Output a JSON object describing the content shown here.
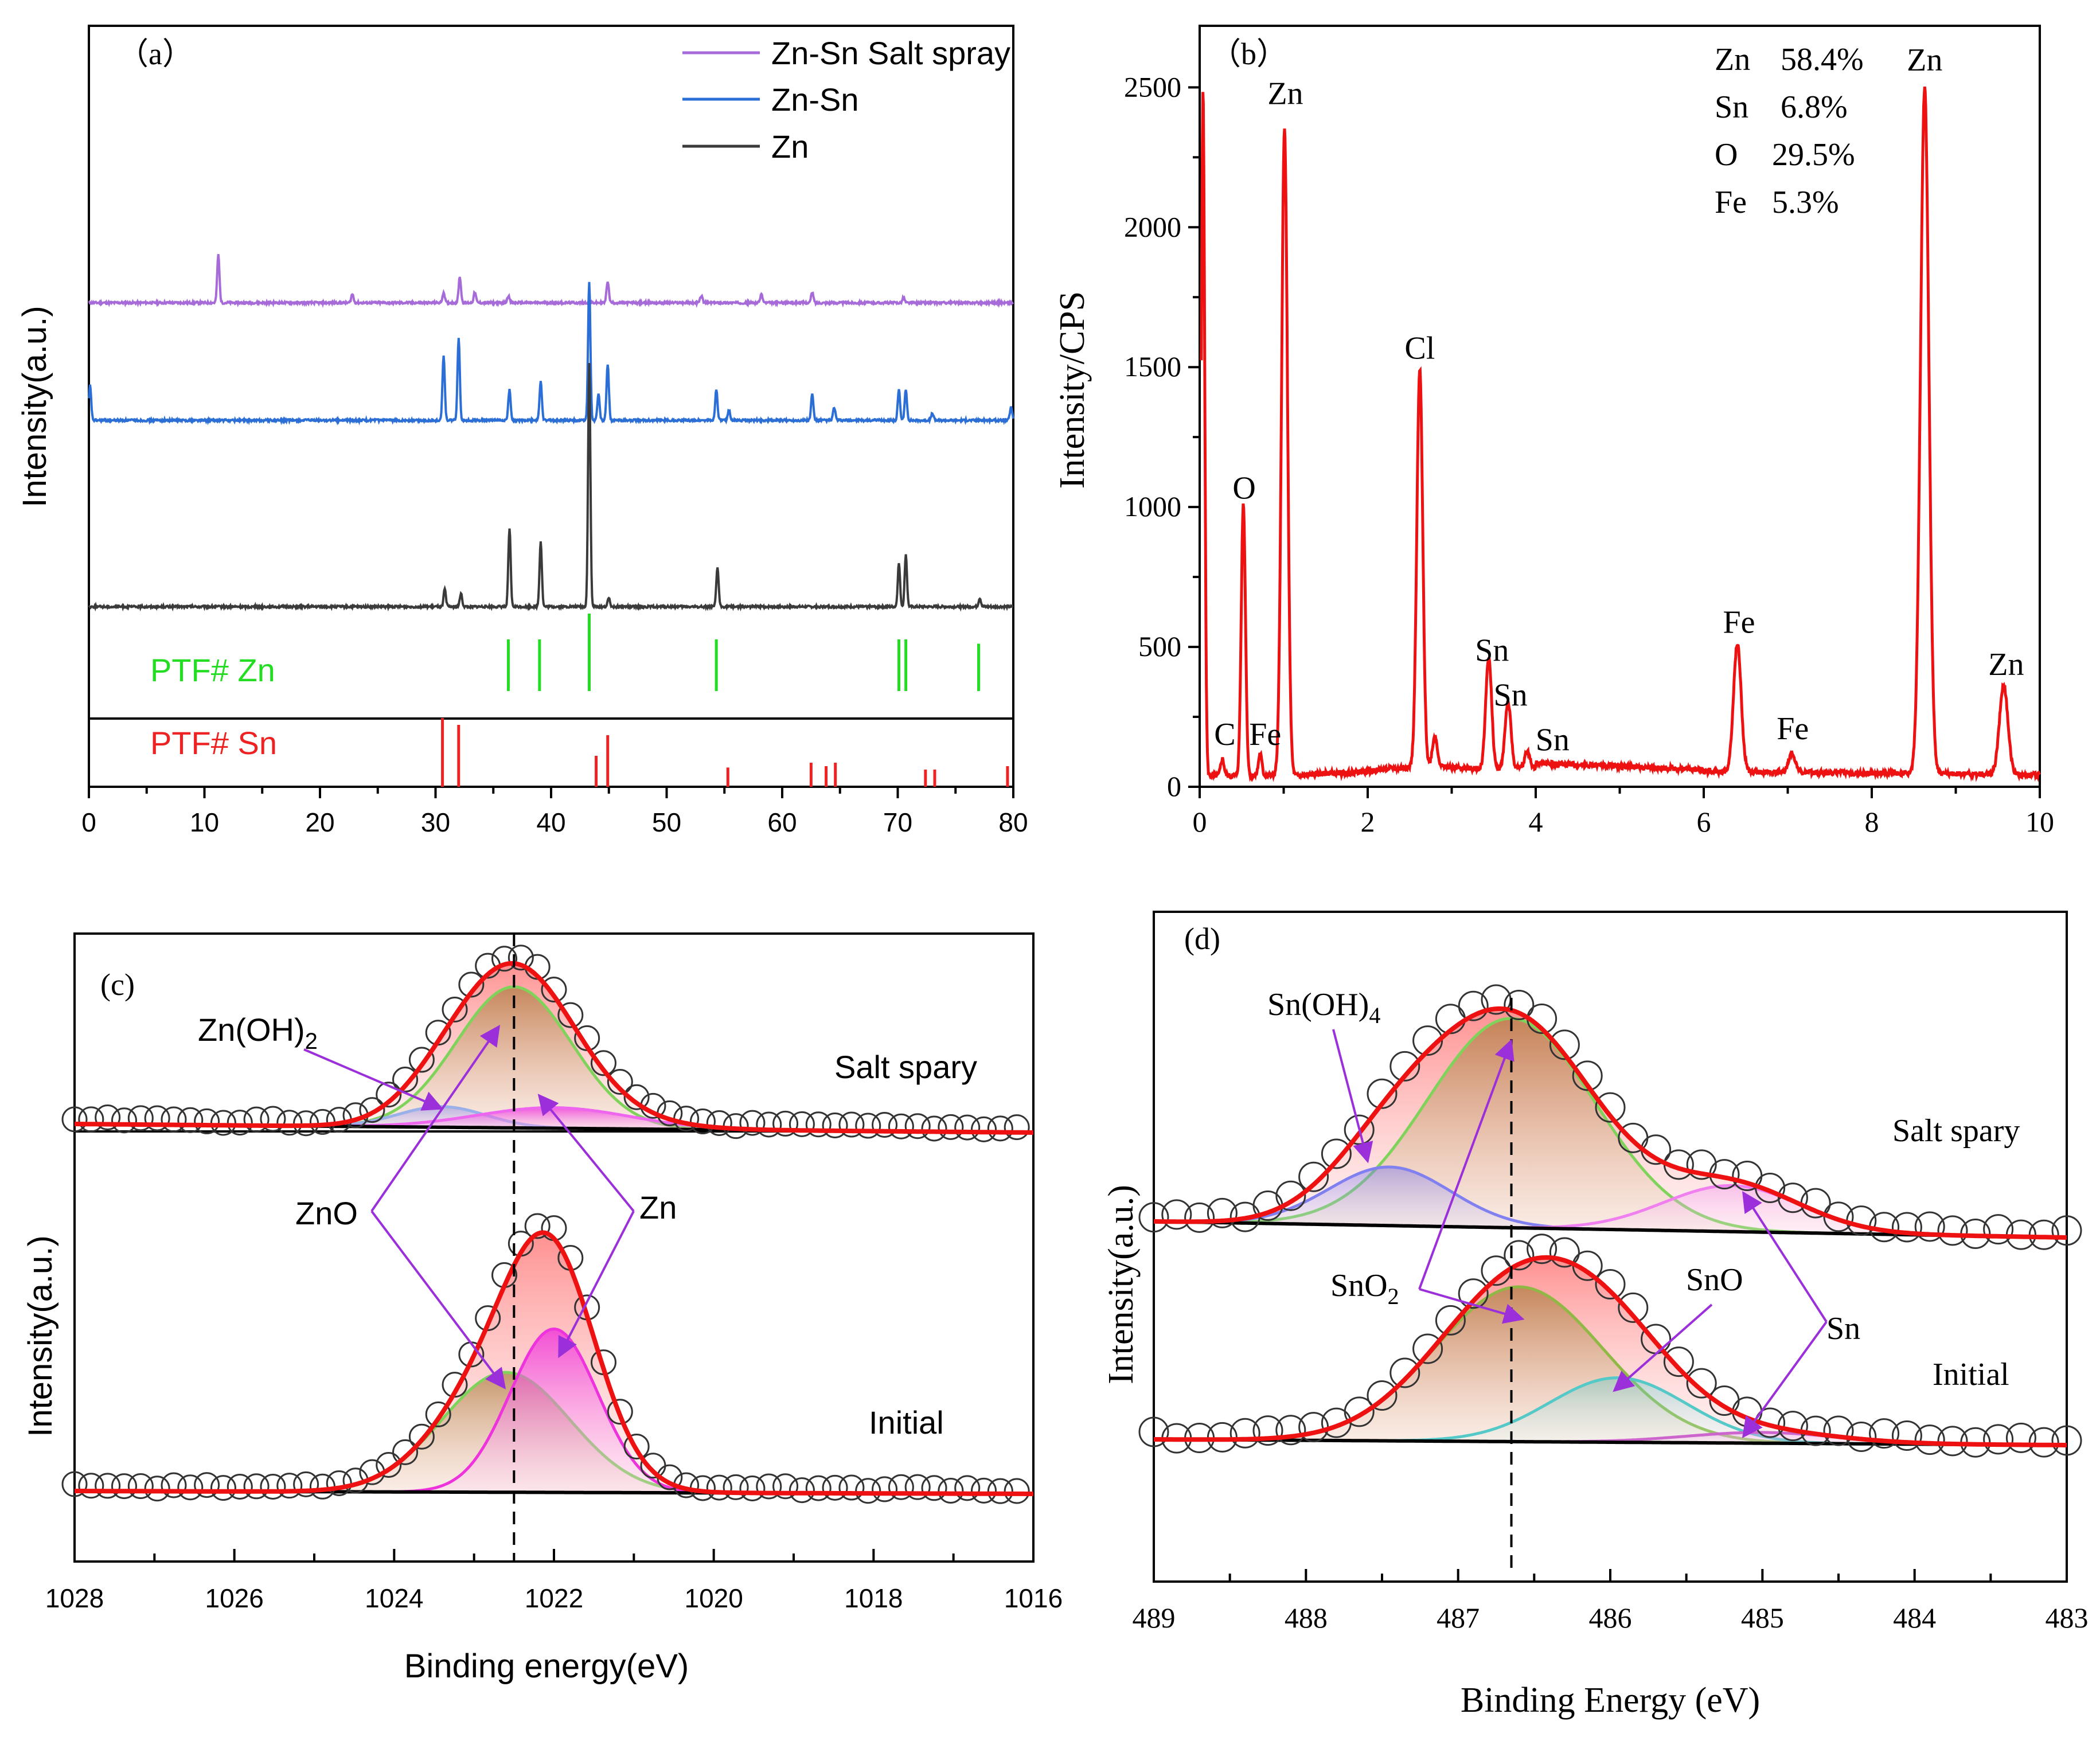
{
  "chart_data": [
    {
      "id": "a",
      "type": "line",
      "panel_label": "（a）",
      "ylabel": "Intensity(a.u.)",
      "xlim": [
        0,
        80
      ],
      "xticks": [
        0,
        10,
        20,
        30,
        40,
        50,
        60,
        70,
        80
      ],
      "legend_position": "top-right",
      "series": [
        {
          "name": "Zn-Sn Salt spray",
          "color": "#a66bd9",
          "peaks": [
            [
              11.2,
              0.55
            ],
            [
              22.8,
              0.1
            ],
            [
              30.7,
              0.12
            ],
            [
              32.1,
              0.3
            ],
            [
              33.4,
              0.12
            ],
            [
              36.3,
              0.08
            ],
            [
              44.9,
              0.25
            ],
            [
              53.0,
              0.08
            ],
            [
              58.2,
              0.1
            ],
            [
              62.6,
              0.12
            ],
            [
              70.5,
              0.06
            ]
          ]
        },
        {
          "name": "Zn-Sn",
          "color": "#2b6fd6",
          "peaks": [
            [
              0.1,
              0.4
            ],
            [
              30.7,
              0.75
            ],
            [
              32.0,
              0.95
            ],
            [
              36.4,
              0.35
            ],
            [
              39.1,
              0.45
            ],
            [
              43.3,
              1.6
            ],
            [
              44.1,
              0.3
            ],
            [
              44.9,
              0.65
            ],
            [
              54.3,
              0.35
            ],
            [
              55.4,
              0.12
            ],
            [
              62.6,
              0.3
            ],
            [
              64.5,
              0.15
            ],
            [
              70.1,
              0.35
            ],
            [
              70.7,
              0.35
            ],
            [
              73.0,
              0.08
            ],
            [
              79.8,
              0.15
            ]
          ]
        },
        {
          "name": "Zn",
          "color": "#3a3a3a",
          "peaks": [
            [
              30.8,
              0.2
            ],
            [
              32.2,
              0.15
            ],
            [
              36.4,
              0.9
            ],
            [
              39.1,
              0.75
            ],
            [
              43.3,
              2.8
            ],
            [
              45.0,
              0.1
            ],
            [
              54.4,
              0.45
            ],
            [
              70.1,
              0.5
            ],
            [
              70.7,
              0.6
            ],
            [
              77.1,
              0.1
            ]
          ]
        }
      ],
      "reference_sets": [
        {
          "name": "PTF# Zn",
          "color": "#22dd22",
          "positions": [
            36.3,
            39.0,
            43.3,
            54.3,
            70.1,
            70.7,
            77.0
          ],
          "heights": [
            0.6,
            0.6,
            0.9,
            0.6,
            0.6,
            0.6,
            0.55
          ]
        },
        {
          "name": "PTF# Sn",
          "color": "#ee2222",
          "positions": [
            30.6,
            32.0,
            43.9,
            44.9,
            55.3,
            62.5,
            63.8,
            64.6,
            72.4,
            73.2,
            79.5
          ],
          "heights": [
            1.0,
            0.9,
            0.45,
            0.75,
            0.28,
            0.35,
            0.3,
            0.35,
            0.25,
            0.25,
            0.3
          ]
        }
      ]
    },
    {
      "id": "b",
      "type": "line",
      "panel_label": "（b）",
      "ylabel": "Intensity/CPS",
      "xlim": [
        0,
        10
      ],
      "ylim": [
        0,
        2720
      ],
      "xticks": [
        0,
        2,
        4,
        6,
        8,
        10
      ],
      "yticks": [
        0,
        500,
        1000,
        1500,
        2000,
        2500
      ],
      "series": [
        {
          "name": "EDS spectrum",
          "color": "#ee1111",
          "peaks": [
            [
              0.04,
              2450,
              0.02
            ],
            [
              0.27,
              60,
              0.02
            ],
            [
              0.52,
              970,
              0.025
            ],
            [
              0.72,
              80,
              0.02
            ],
            [
              1.01,
              2310,
              0.035
            ],
            [
              2.62,
              1420,
              0.035
            ],
            [
              2.8,
              110,
              0.03
            ],
            [
              3.44,
              400,
              0.035
            ],
            [
              3.67,
              240,
              0.035
            ],
            [
              3.9,
              60,
              0.03
            ],
            [
              6.4,
              460,
              0.045
            ],
            [
              7.05,
              70,
              0.04
            ],
            [
              8.63,
              2450,
              0.05
            ],
            [
              9.57,
              320,
              0.05
            ]
          ]
        }
      ],
      "peak_labels": [
        {
          "text": "Zn",
          "x": 1.02,
          "y": 2440
        },
        {
          "text": "O",
          "x": 0.53,
          "y": 1030
        },
        {
          "text": "C",
          "x": 0.3,
          "y": 150
        },
        {
          "text": "Fe",
          "x": 0.78,
          "y": 150
        },
        {
          "text": "Cl",
          "x": 2.62,
          "y": 1530
        },
        {
          "text": "Sn",
          "x": 3.48,
          "y": 450
        },
        {
          "text": "Sn",
          "x": 3.7,
          "y": 290
        },
        {
          "text": "Sn",
          "x": 4.2,
          "y": 130
        },
        {
          "text": "Fe",
          "x": 6.42,
          "y": 550
        },
        {
          "text": "Fe",
          "x": 7.06,
          "y": 170
        },
        {
          "text": "Zn",
          "x": 8.63,
          "y": 2560
        },
        {
          "text": "Zn",
          "x": 9.6,
          "y": 400
        }
      ],
      "composition": [
        {
          "element": "Zn",
          "value": "58.4%"
        },
        {
          "element": "Sn",
          "value": "6.8%"
        },
        {
          "element": "O",
          "value": "29.5%"
        },
        {
          "element": "Fe",
          "value": "5.3%"
        }
      ]
    },
    {
      "id": "c",
      "type": "line",
      "panel_label": "(c)",
      "xlabel": "Binding energy(eV)",
      "ylabel": "Intensity(a.u.)",
      "xlim": [
        1028,
        1016
      ],
      "xticks": [
        1028,
        1026,
        1024,
        1022,
        1020,
        1018,
        1016
      ],
      "dashed_line_x": 1022.5,
      "states": [
        {
          "name": "Salt spary",
          "peaks": [
            {
              "component": "ZnO",
              "center": 1022.5,
              "height": 0.82,
              "sigma": 0.72,
              "color": "#7fd35a"
            },
            {
              "component": "Zn(OH)2",
              "center": 1023.4,
              "height": 0.12,
              "sigma": 0.55,
              "color": "#9ab0e8"
            },
            {
              "component": "Zn",
              "center": 1022.0,
              "height": 0.12,
              "sigma": 0.95,
              "color": "#ee66ee"
            }
          ]
        },
        {
          "name": "Initial",
          "peaks": [
            {
              "component": "ZnO",
              "center": 1022.6,
              "height": 0.55,
              "sigma": 0.8,
              "color": "#7fd35a"
            },
            {
              "component": "Zn",
              "center": 1022.0,
              "height": 0.75,
              "sigma": 0.55,
              "color": "#ee33dd"
            }
          ]
        }
      ],
      "annotations": [
        "Zn(OH)2",
        "ZnO",
        "Zn"
      ]
    },
    {
      "id": "d",
      "type": "line",
      "panel_label": "(d)",
      "xlabel": "Binding Energy (eV)",
      "ylabel": "Intensity(a.u.)",
      "xlim": [
        489,
        483
      ],
      "xticks": [
        489,
        488,
        487,
        486,
        485,
        484,
        483
      ],
      "dashed_line_x": 486.65,
      "states": [
        {
          "name": "Salt spary",
          "peaks": [
            {
              "component": "SnO2",
              "center": 486.65,
              "height": 1.0,
              "sigma": 0.55,
              "color": "#7fd35a"
            },
            {
              "component": "Sn(OH)4",
              "center": 487.45,
              "height": 0.28,
              "sigma": 0.4,
              "color": "#8080f0"
            },
            {
              "component": "Sn",
              "center": 485.2,
              "height": 0.22,
              "sigma": 0.45,
              "color": "#f07ff0"
            }
          ]
        },
        {
          "name": "Initial",
          "peaks": [
            {
              "component": "SnO2",
              "center": 486.6,
              "height": 0.72,
              "sigma": 0.55,
              "color": "#8fb845"
            },
            {
              "component": "SnO",
              "center": 485.95,
              "height": 0.3,
              "sigma": 0.45,
              "color": "#55c8c8"
            },
            {
              "component": "Sn",
              "center": 485.0,
              "height": 0.05,
              "sigma": 0.5,
              "color": "#cc66cc"
            }
          ]
        }
      ],
      "annotations": [
        "Sn(OH)4",
        "SnO2",
        "SnO",
        "Sn"
      ]
    }
  ]
}
